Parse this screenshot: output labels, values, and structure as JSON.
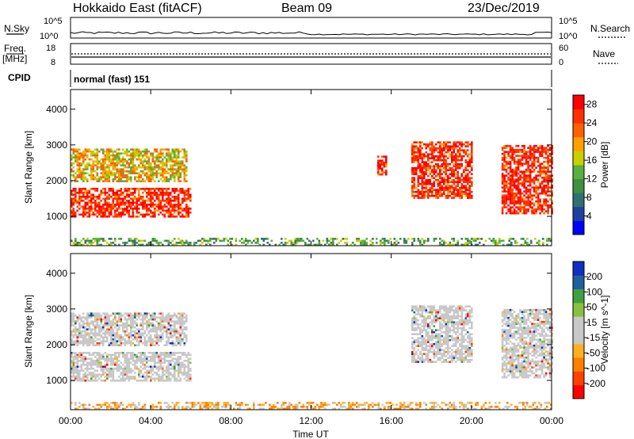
{
  "header": {
    "station": "Hokkaido East (fitACF)",
    "beam": "Beam 09",
    "date": "23/Dec/2019"
  },
  "top_strip": {
    "nsky_label": "N.Sky",
    "nsearch_label": "N.Search",
    "left_ticks": [
      "10^5",
      "10^0"
    ],
    "right_ticks": [
      "10^5",
      "10^0"
    ],
    "freq_label_line1": "Freq.",
    "freq_label_line2": "[MHz]",
    "freq_ticks": [
      "18",
      "8"
    ],
    "nave_label": "Nave",
    "nave_ticks": [
      "60",
      "0"
    ],
    "cpid_label": "CPID",
    "mode_text": "normal (fast) 151"
  },
  "colors": {
    "power_scale": [
      "#0000ff",
      "#2040a0",
      "#307070",
      "#409040",
      "#58b040",
      "#c8d000",
      "#ffa000",
      "#ff6000",
      "#ff3000",
      "#ff0000"
    ],
    "velocity_scale": [
      "#ff0000",
      "#ff4000",
      "#ff8000",
      "#ffb020",
      "#c8c8c8",
      "#c8c8c8",
      "#88c040",
      "#40a040",
      "#2060a0",
      "#1030c0"
    ]
  },
  "chart_data": [
    {
      "type": "heatmap",
      "title": "",
      "xlabel": "Time UT",
      "ylabel": "Slant Range [km]",
      "x_ticks": [
        "00:00",
        "04:00",
        "08:00",
        "12:00",
        "16:00",
        "20:00",
        "00:00"
      ],
      "y_ticks": [
        "1000",
        "2000",
        "3000",
        "4000"
      ],
      "ylim": [
        180,
        4550
      ],
      "colorbar": {
        "label": "Power [dB]",
        "ticks": [
          "4",
          "8",
          "12",
          "16",
          "20",
          "24",
          "28"
        ],
        "range": [
          0,
          30
        ]
      },
      "echo_regions": [
        {
          "t_start": 0.0,
          "t_end": 6.0,
          "range_km": [
            1000,
            1800
          ],
          "level": "high"
        },
        {
          "t_start": 0.0,
          "t_end": 5.8,
          "range_km": [
            2000,
            2900
          ],
          "level": "medium"
        },
        {
          "t_start": 17.0,
          "t_end": 20.0,
          "range_km": [
            1500,
            3100
          ],
          "level": "high"
        },
        {
          "t_start": 21.5,
          "t_end": 24.0,
          "range_km": [
            1100,
            3000
          ],
          "level": "high"
        },
        {
          "t_start": 15.3,
          "t_end": 15.7,
          "range_km": [
            2200,
            2700
          ],
          "level": "high"
        },
        {
          "t_start": 0.0,
          "t_end": 24.0,
          "range_km": [
            200,
            400
          ],
          "level": "low"
        }
      ]
    },
    {
      "type": "heatmap",
      "title": "",
      "xlabel": "Time UT",
      "ylabel": "Slant Range [km]",
      "x_ticks": [
        "00:00",
        "04:00",
        "08:00",
        "12:00",
        "16:00",
        "20:00",
        "00:00"
      ],
      "y_ticks": [
        "1000",
        "2000",
        "3000",
        "4000"
      ],
      "ylim": [
        180,
        4550
      ],
      "colorbar": {
        "label": "Velocity [m s^-1]",
        "ticks": [
          "200",
          "100",
          "50",
          "15",
          "-15",
          "-50",
          "-100",
          "-200"
        ],
        "range": [
          -250,
          250
        ]
      },
      "echo_regions": [
        {
          "t_start": 0.0,
          "t_end": 6.0,
          "range_km": [
            1000,
            1800
          ],
          "level": "zero"
        },
        {
          "t_start": 0.0,
          "t_end": 5.8,
          "range_km": [
            2000,
            2900
          ],
          "level": "zero"
        },
        {
          "t_start": 17.0,
          "t_end": 20.0,
          "range_km": [
            1500,
            3100
          ],
          "level": "zero"
        },
        {
          "t_start": 21.5,
          "t_end": 24.0,
          "range_km": [
            1100,
            3000
          ],
          "level": "zero"
        },
        {
          "t_start": 0.0,
          "t_end": 24.0,
          "range_km": [
            200,
            400
          ],
          "level": "negative"
        }
      ]
    }
  ]
}
